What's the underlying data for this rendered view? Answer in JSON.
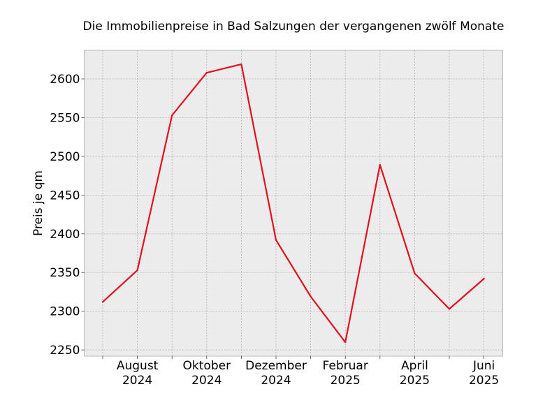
{
  "chart_data": {
    "type": "line",
    "title": "Die Immobilienpreise in Bad Salzungen der vergangenen zwölf Monate",
    "xlabel": "",
    "ylabel": "Preis je qm",
    "x": [
      "2024-07",
      "2024-08",
      "2024-09",
      "2024-10",
      "2024-11",
      "2024-12",
      "2025-01",
      "2025-02",
      "2025-03",
      "2025-04",
      "2025-05",
      "2025-06"
    ],
    "series": [
      {
        "values": [
          2312,
          2353,
          2553,
          2608,
          2619,
          2392,
          2319,
          2260,
          2489,
          2349,
          2303,
          2342
        ]
      }
    ],
    "x_tick_labels": [
      {
        "line1": "August",
        "line2": "2024"
      },
      {
        "line1": "Oktober",
        "line2": "2024"
      },
      {
        "line1": "Dezember",
        "line2": "2024"
      },
      {
        "line1": "Februar",
        "line2": "2025"
      },
      {
        "line1": "April",
        "line2": "2025"
      },
      {
        "line1": "Juni",
        "line2": "2025"
      }
    ],
    "y_ticks": [
      "2250",
      "2300",
      "2350",
      "2400",
      "2450",
      "2500",
      "2550",
      "2600"
    ],
    "ylim": [
      2242,
      2637
    ],
    "grid": true,
    "colors": {
      "line": "#e3101c",
      "background": "#ececec",
      "grid": "#b0b0b0"
    }
  }
}
